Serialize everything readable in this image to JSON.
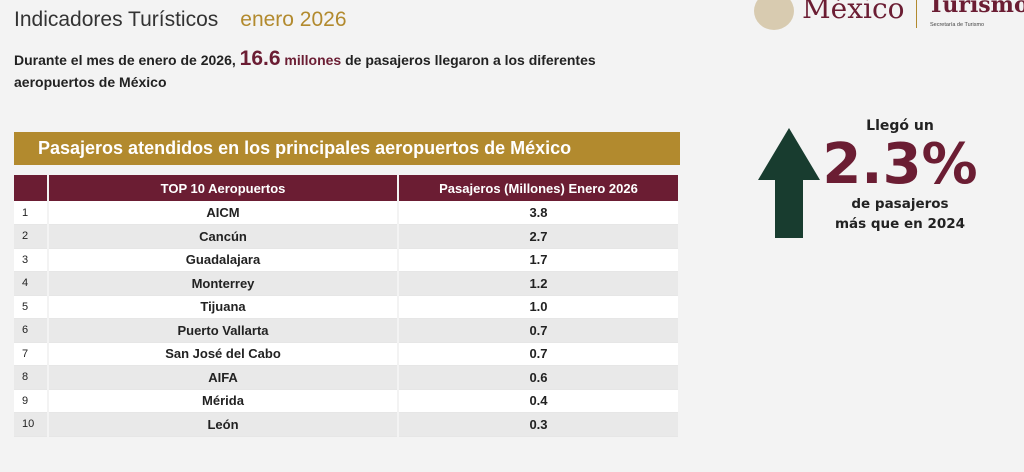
{
  "header": {
    "title": "Indicadores Turísticos",
    "month": "enero 2026"
  },
  "logo": {
    "mexico": "México",
    "turismo": "Turismo",
    "secretaria": "Secretaría de Turismo"
  },
  "intro": {
    "before": "Durante el mes de enero de 2026, ",
    "number": "16.6",
    "unit": " millones",
    "after": " de pasajeros llegaron a los diferentes aeropuertos de México"
  },
  "banner": "Pasajeros atendidos en los principales aeropuertos de México",
  "table": {
    "headers": [
      "",
      "TOP 10 Aeropuertos",
      "Pasajeros (Millones) Enero 2026"
    ],
    "rows": [
      [
        "1",
        "AICM",
        "3.8"
      ],
      [
        "2",
        "Cancún",
        "2.7"
      ],
      [
        "3",
        "Guadalajara",
        "1.7"
      ],
      [
        "4",
        "Monterrey",
        "1.2"
      ],
      [
        "5",
        "Tijuana",
        "1.0"
      ],
      [
        "6",
        "Puerto Vallarta",
        "0.7"
      ],
      [
        "7",
        "San José del Cabo",
        "0.7"
      ],
      [
        "8",
        "AIFA",
        "0.6"
      ],
      [
        "9",
        "Mérida",
        "0.4"
      ],
      [
        "10",
        "León",
        "0.3"
      ]
    ]
  },
  "stat": {
    "lead": "Llegó un",
    "value": "2.3%",
    "line1": "de pasajeros",
    "line2": "más que en 2024"
  },
  "colors": {
    "maroon": "#6b1d33",
    "gold": "#b28a2e",
    "arrow": "#183c2f"
  }
}
